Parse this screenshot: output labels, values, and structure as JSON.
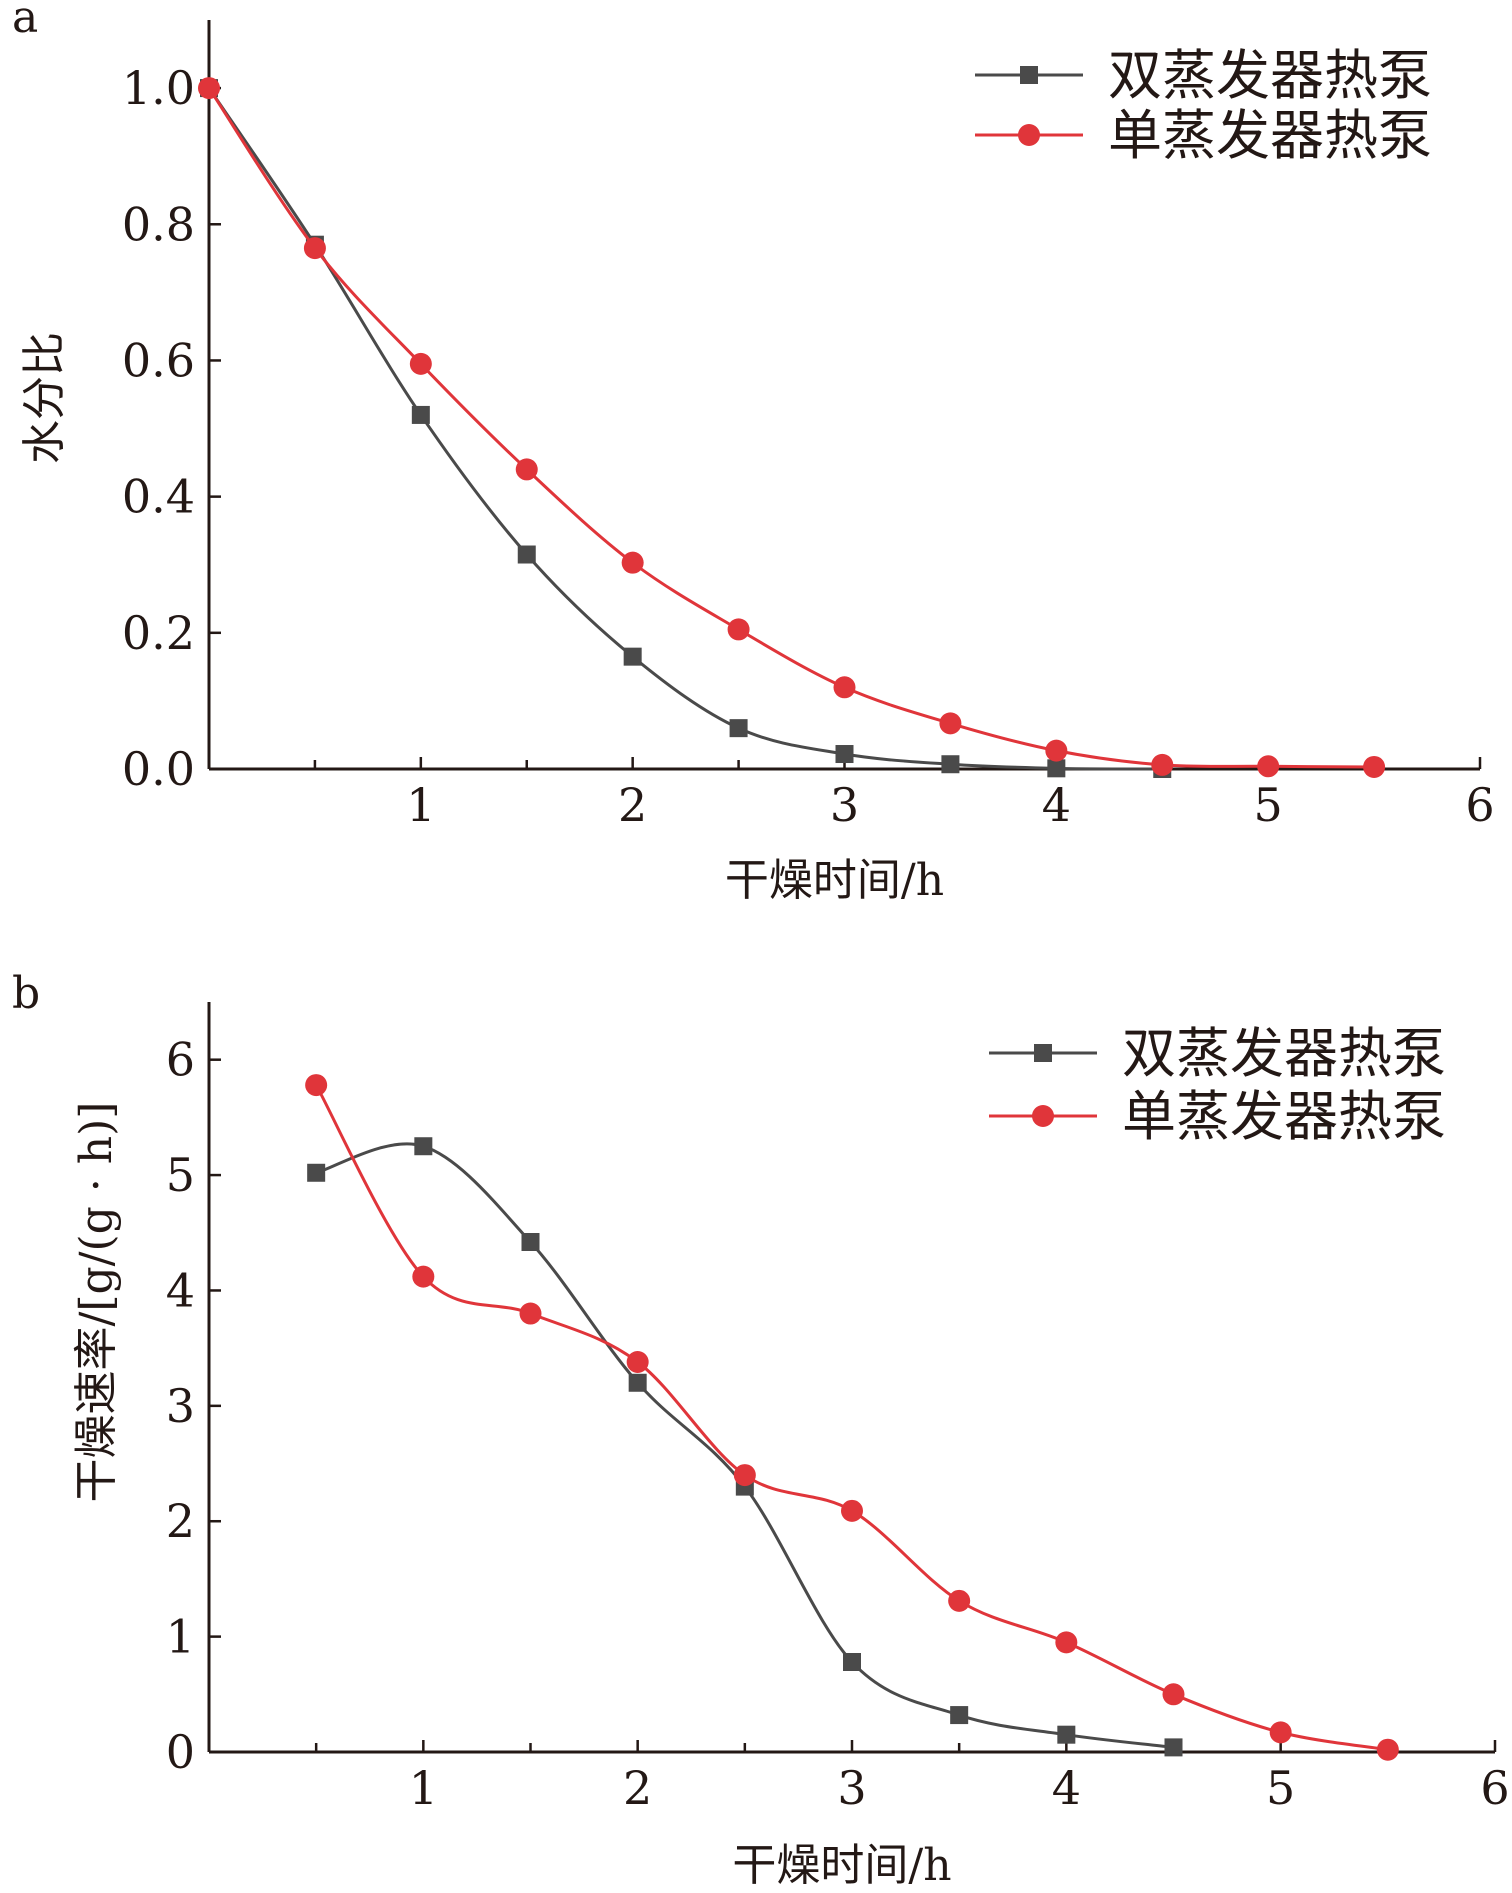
{
  "colors": {
    "double": "#4a4a4a",
    "single": "#e0353a",
    "axis": "#231815"
  },
  "chart_data": [
    {
      "type": "line",
      "panel_label": "a",
      "xlabel": "干燥时间/h",
      "ylabel": "水分比",
      "xlim": [
        0,
        6
      ],
      "ylim": [
        0,
        1.1
      ],
      "xticks": [
        1,
        2,
        3,
        4,
        5,
        6
      ],
      "xtick_labels": [
        "1",
        "2",
        "3",
        "4",
        "5",
        "6"
      ],
      "yticks": [
        0,
        0.2,
        0.4,
        0.6,
        0.8,
        1.0
      ],
      "ytick_labels": [
        "0.0",
        "0.2",
        "0.4",
        "0.6",
        "0.8",
        "1.0"
      ],
      "grid": false,
      "legend_position": "top-right",
      "series": [
        {
          "name": "双蒸发器热泵",
          "marker": "square",
          "color_key": "double",
          "x": [
            0,
            0.5,
            1,
            1.5,
            2,
            2.5,
            3,
            3.5,
            4,
            4.5
          ],
          "y": [
            1.0,
            0.77,
            0.52,
            0.315,
            0.165,
            0.06,
            0.022,
            0.007,
            0.001,
            0.0
          ]
        },
        {
          "name": "单蒸发器热泵",
          "marker": "circle",
          "color_key": "single",
          "x": [
            0,
            0.5,
            1,
            1.5,
            2,
            2.5,
            3,
            3.5,
            4,
            4.5,
            5,
            5.5
          ],
          "y": [
            1.0,
            0.765,
            0.595,
            0.44,
            0.303,
            0.205,
            0.12,
            0.067,
            0.027,
            0.006,
            0.004,
            0.003
          ]
        }
      ]
    },
    {
      "type": "line",
      "panel_label": "b",
      "xlabel": "干燥时间/h",
      "ylabel": "干燥速率/[g/(g · h)]",
      "xlim": [
        0,
        6
      ],
      "ylim": [
        0,
        6.5
      ],
      "xticks": [
        1,
        2,
        3,
        4,
        5,
        6
      ],
      "xtick_labels": [
        "1",
        "2",
        "3",
        "4",
        "5",
        "6"
      ],
      "yticks": [
        0,
        1,
        2,
        3,
        4,
        5,
        6
      ],
      "ytick_labels": [
        "0",
        "1",
        "2",
        "3",
        "4",
        "5",
        "6"
      ],
      "grid": false,
      "legend_position": "top-right",
      "series": [
        {
          "name": "双蒸发器热泵",
          "marker": "square",
          "color_key": "double",
          "x": [
            0.5,
            1,
            1.5,
            2,
            2.5,
            3,
            3.5,
            4,
            4.5
          ],
          "y": [
            5.02,
            5.25,
            4.42,
            3.2,
            2.3,
            0.78,
            0.32,
            0.15,
            0.04
          ]
        },
        {
          "name": "单蒸发器热泵",
          "marker": "circle",
          "color_key": "single",
          "x": [
            0.5,
            1,
            1.5,
            2,
            2.5,
            3,
            3.5,
            4,
            4.5,
            5,
            5.5
          ],
          "y": [
            5.78,
            4.12,
            3.8,
            3.38,
            2.4,
            2.09,
            1.31,
            0.95,
            0.5,
            0.17,
            0.02
          ]
        }
      ]
    }
  ]
}
